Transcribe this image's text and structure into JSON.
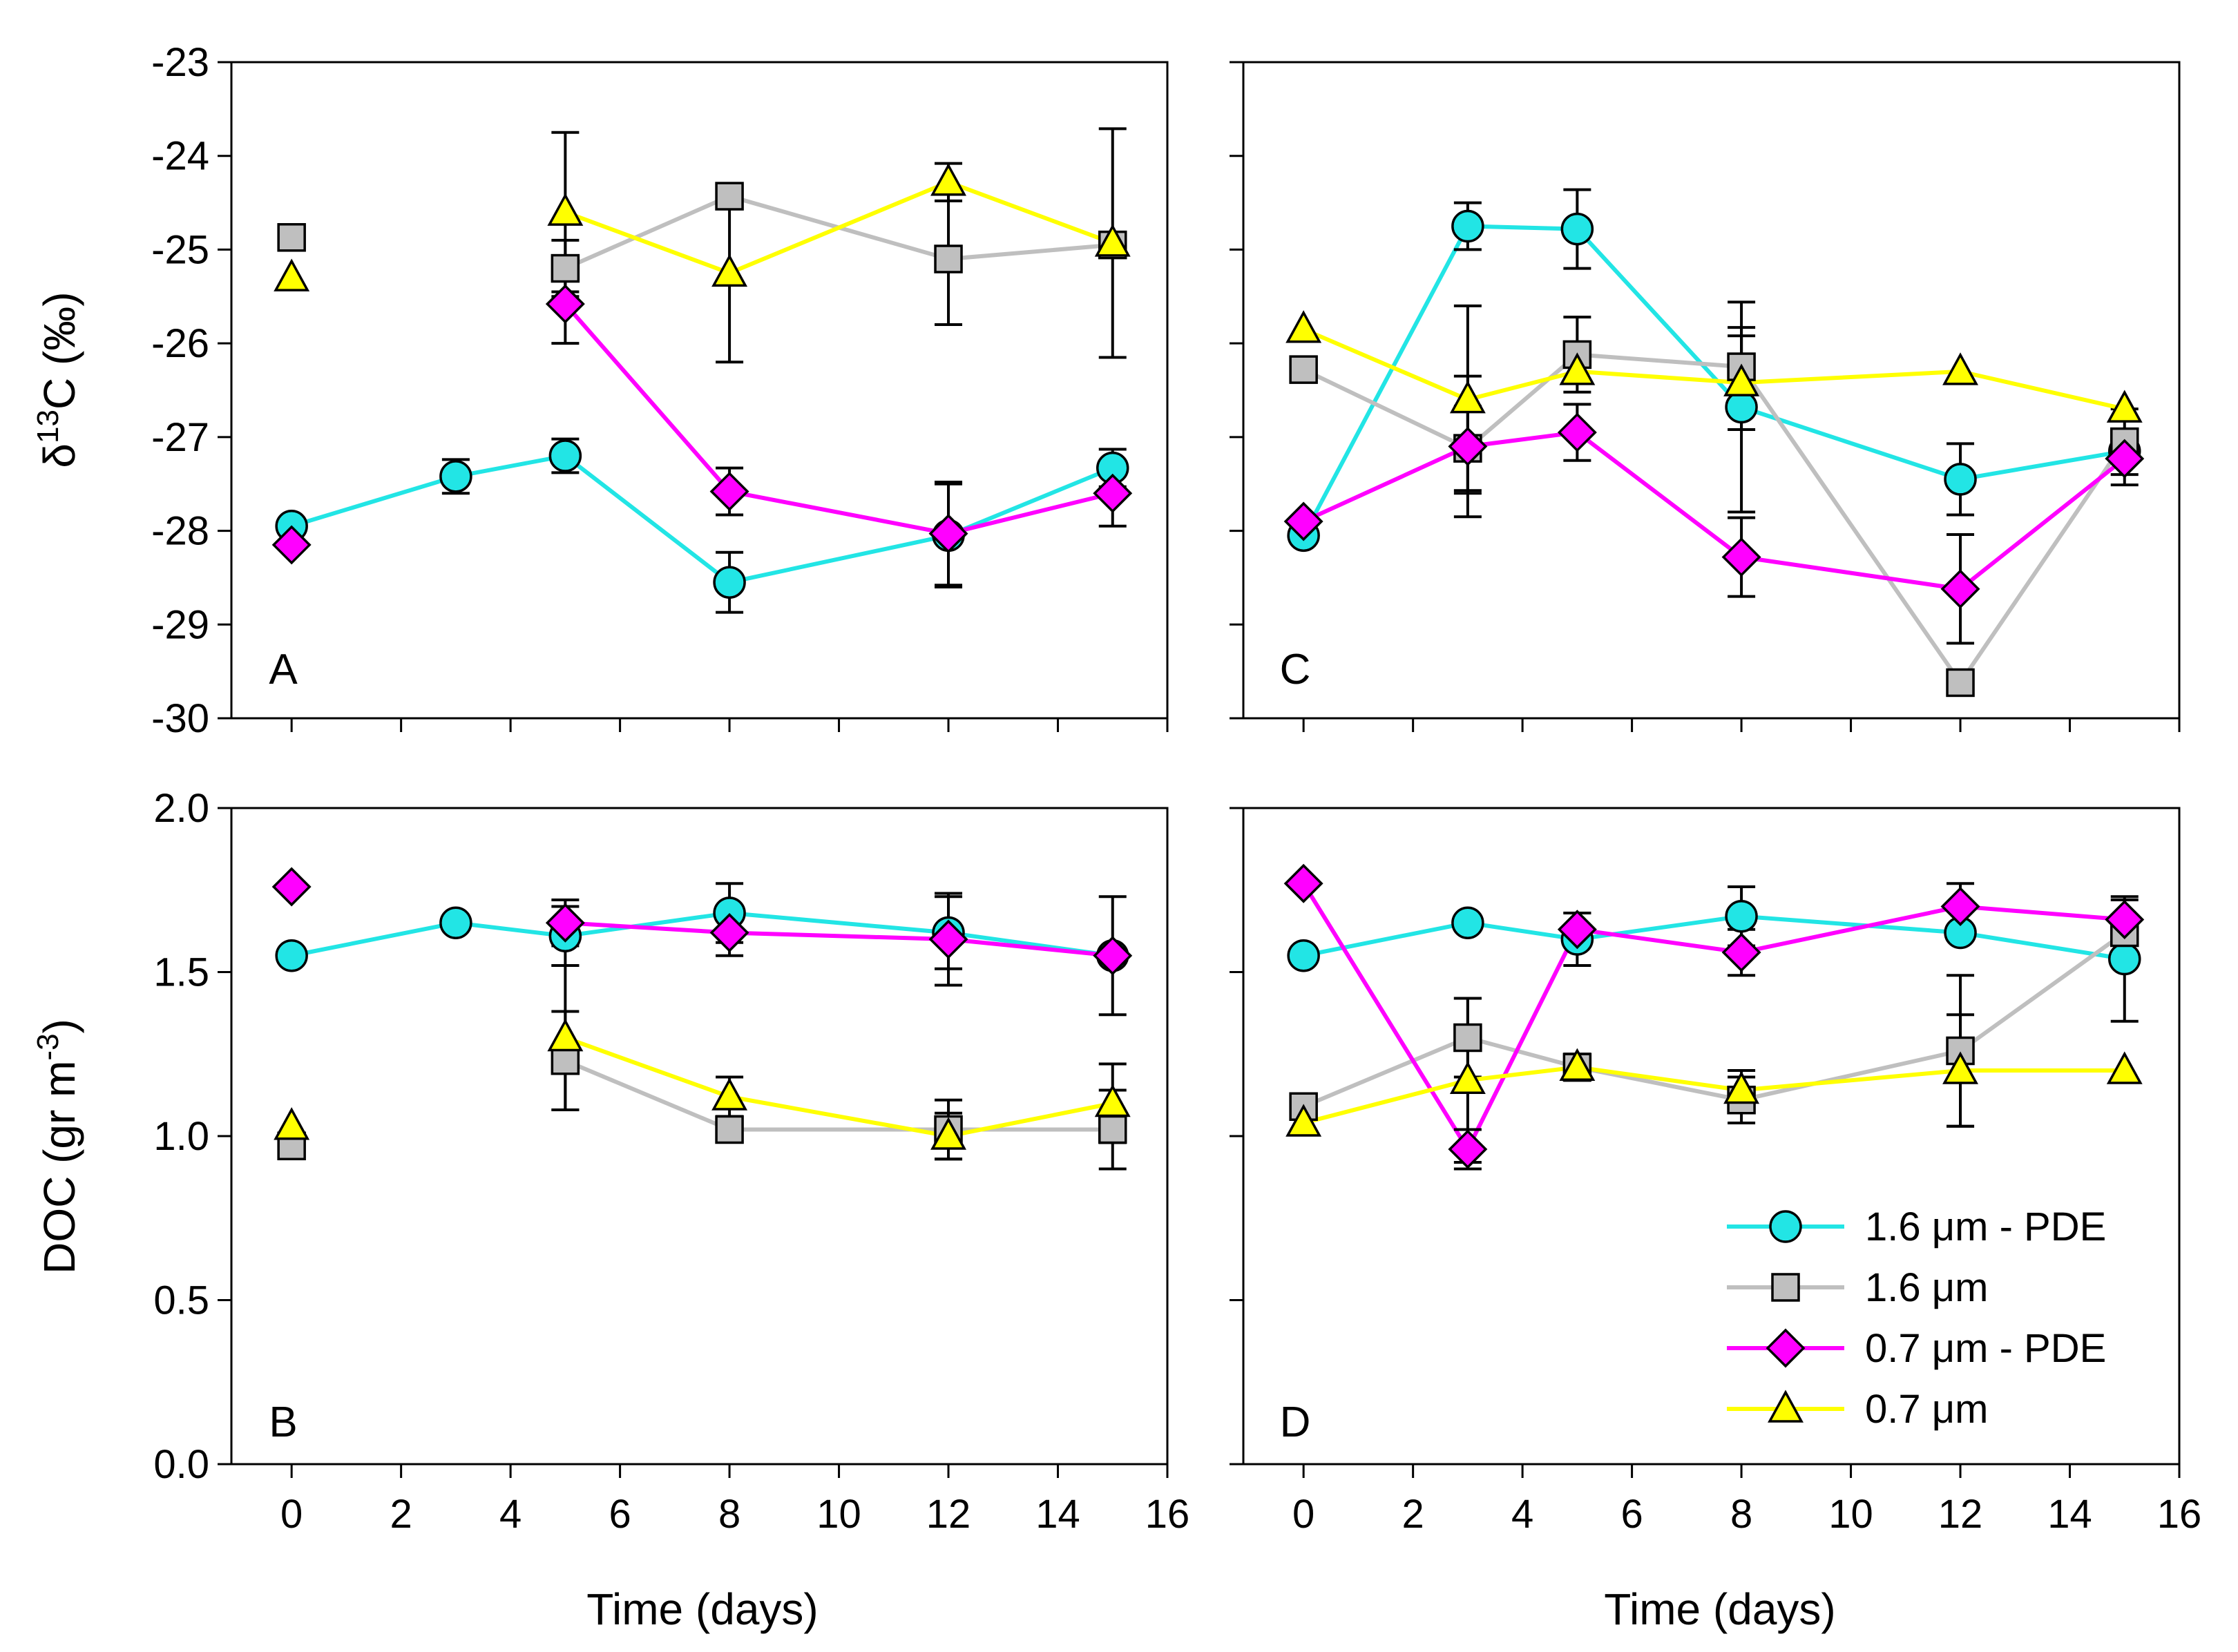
{
  "chart_data": {
    "type": "line",
    "colors": {
      "pde16": "#22e5e5",
      "m16": "#bfbfbf",
      "pde07": "#ff00ff",
      "m07": "#ffff00"
    },
    "legend": [
      {
        "series": "pde16",
        "label": "1.6 μm - PDE",
        "marker": "circle"
      },
      {
        "series": "m16",
        "label": "1.6 μm",
        "marker": "square"
      },
      {
        "series": "pde07",
        "label": "0.7 μm - PDE",
        "marker": "diamond"
      },
      {
        "series": "m07",
        "label": "0.7 μm",
        "marker": "triangle"
      }
    ],
    "xlabel": "Time (days)",
    "xticks": [
      "0",
      "2",
      "4",
      "6",
      "8",
      "10",
      "12",
      "14",
      "16"
    ],
    "xlim": [
      -1.1,
      16
    ],
    "panels": [
      {
        "id": "A",
        "label": "A",
        "ylim": [
          -30,
          -23
        ],
        "yticks": [
          "-30",
          "-29",
          "-28",
          "-27",
          "-26",
          "-25",
          "-24",
          "-23"
        ],
        "ylabel_main": "δ",
        "ylabel_sup": "13",
        "ylabel_rest": "C (‰)",
        "series": [
          {
            "key": "pde16",
            "points": [
              [
                0,
                -27.95,
                null
              ],
              [
                3,
                -27.42,
                0.18
              ],
              [
                5,
                -27.2,
                0.18
              ],
              [
                8,
                -28.55,
                0.32
              ],
              [
                12,
                -28.05,
                0.55
              ],
              [
                15,
                -27.33,
                0.2
              ]
            ]
          },
          {
            "key": "m16",
            "points": [
              [
                0,
                -24.87,
                null
              ],
              [
                5,
                -25.2,
                0.3
              ],
              [
                8,
                -24.43,
                null
              ],
              [
                12,
                -25.1,
                0.7
              ],
              [
                15,
                -24.95,
                null
              ]
            ]
          },
          {
            "key": "pde07",
            "points": [
              [
                0,
                -28.15,
                null
              ],
              [
                5,
                -25.58,
                0.42
              ],
              [
                8,
                -27.58,
                0.25
              ],
              [
                12,
                -28.03,
                0.55
              ],
              [
                15,
                -27.6,
                0.35
              ]
            ]
          },
          {
            "key": "m07",
            "points": [
              [
                0,
                -25.3,
                null
              ],
              [
                5,
                -24.6,
                0.85
              ],
              [
                8,
                -25.25,
                0.95
              ],
              [
                12,
                -24.28,
                0.2
              ],
              [
                15,
                -24.93,
                1.22
              ]
            ]
          }
        ]
      },
      {
        "id": "C",
        "label": "C",
        "ylim": [
          -30,
          -23
        ],
        "yticks": [],
        "series": [
          {
            "key": "pde16",
            "points": [
              [
                0,
                -28.05,
                null
              ],
              [
                3,
                -24.75,
                0.25
              ],
              [
                5,
                -24.78,
                0.42
              ],
              [
                8,
                -26.68,
                1.12
              ],
              [
                12,
                -27.45,
                0.38
              ],
              [
                15,
                -27.15,
                null
              ]
            ]
          },
          {
            "key": "m16",
            "points": [
              [
                0,
                -26.28,
                null
              ],
              [
                3,
                -27.12,
                0.45
              ],
              [
                5,
                -26.12,
                0.4
              ],
              [
                8,
                -26.25,
                0.42
              ],
              [
                12,
                -29.62,
                null
              ],
              [
                15,
                -27.05,
                0.35
              ]
            ]
          },
          {
            "key": "pde07",
            "points": [
              [
                0,
                -27.9,
                null
              ],
              [
                3,
                -27.1,
                0.75
              ],
              [
                5,
                -26.95,
                0.3
              ],
              [
                8,
                -28.28,
                0.42
              ],
              [
                12,
                -28.62,
                0.58
              ],
              [
                15,
                -27.23,
                0.28
              ]
            ]
          },
          {
            "key": "m07",
            "points": [
              [
                0,
                -25.85,
                null
              ],
              [
                3,
                -26.6,
                1.0
              ],
              [
                5,
                -26.3,
                null
              ],
              [
                8,
                -26.42,
                0.5
              ],
              [
                12,
                -26.3,
                null
              ],
              [
                15,
                -26.7,
                null
              ]
            ]
          }
        ]
      },
      {
        "id": "B",
        "label": "B",
        "ylim": [
          0,
          2
        ],
        "yticks": [
          "0.0",
          "0.5",
          "1.0",
          "1.5",
          "2.0"
        ],
        "ylabel_main": "DOC (gr m",
        "ylabel_sup": "-3",
        "ylabel_rest": ")",
        "series": [
          {
            "key": "pde16",
            "points": [
              [
                0,
                1.55,
                null
              ],
              [
                3,
                1.65,
                null
              ],
              [
                5,
                1.61,
                0.09
              ],
              [
                8,
                1.68,
                0.09
              ],
              [
                12,
                1.62,
                0.11
              ],
              [
                15,
                1.55,
                0.18
              ]
            ]
          },
          {
            "key": "m16",
            "points": [
              [
                0,
                0.97,
                null
              ],
              [
                5,
                1.23,
                0.15
              ],
              [
                8,
                1.02,
                null
              ],
              [
                12,
                1.02,
                0.09
              ],
              [
                15,
                1.02,
                0.12
              ]
            ]
          },
          {
            "key": "pde07",
            "points": [
              [
                0,
                1.76,
                null
              ],
              [
                5,
                1.65,
                0.07
              ],
              [
                8,
                1.62,
                0.07
              ],
              [
                12,
                1.6,
                0.14
              ],
              [
                15,
                1.55,
                null
              ]
            ]
          },
          {
            "key": "m07",
            "points": [
              [
                0,
                1.03,
                null
              ],
              [
                5,
                1.3,
                0.22
              ],
              [
                8,
                1.12,
                0.06
              ],
              [
                12,
                1.0,
                0.07
              ],
              [
                15,
                1.1,
                0.12
              ]
            ]
          }
        ]
      },
      {
        "id": "D",
        "label": "D",
        "ylim": [
          0,
          2
        ],
        "yticks": [],
        "series": [
          {
            "key": "pde16",
            "points": [
              [
                0,
                1.55,
                null
              ],
              [
                3,
                1.65,
                null
              ],
              [
                5,
                1.6,
                0.08
              ],
              [
                8,
                1.67,
                0.09
              ],
              [
                12,
                1.62,
                null
              ],
              [
                15,
                1.54,
                0.19
              ]
            ]
          },
          {
            "key": "m16",
            "points": [
              [
                0,
                1.09,
                null
              ],
              [
                3,
                1.3,
                0.12
              ],
              [
                5,
                1.21,
                0.04
              ],
              [
                8,
                1.11,
                0.07
              ],
              [
                12,
                1.26,
                0.23
              ],
              [
                15,
                1.62,
                null
              ]
            ]
          },
          {
            "key": "pde07",
            "points": [
              [
                0,
                1.77,
                null
              ],
              [
                3,
                0.96,
                0.06
              ],
              [
                5,
                1.63,
                0.05
              ],
              [
                8,
                1.56,
                0.07
              ],
              [
                12,
                1.7,
                0.07
              ],
              [
                15,
                1.66,
                0.06
              ]
            ]
          },
          {
            "key": "m07",
            "points": [
              [
                0,
                1.04,
                null
              ],
              [
                3,
                1.17,
                0.25
              ],
              [
                5,
                1.21,
                0.04
              ],
              [
                8,
                1.14,
                0.06
              ],
              [
                12,
                1.2,
                0.17
              ],
              [
                15,
                1.2,
                null
              ]
            ]
          }
        ]
      }
    ]
  }
}
